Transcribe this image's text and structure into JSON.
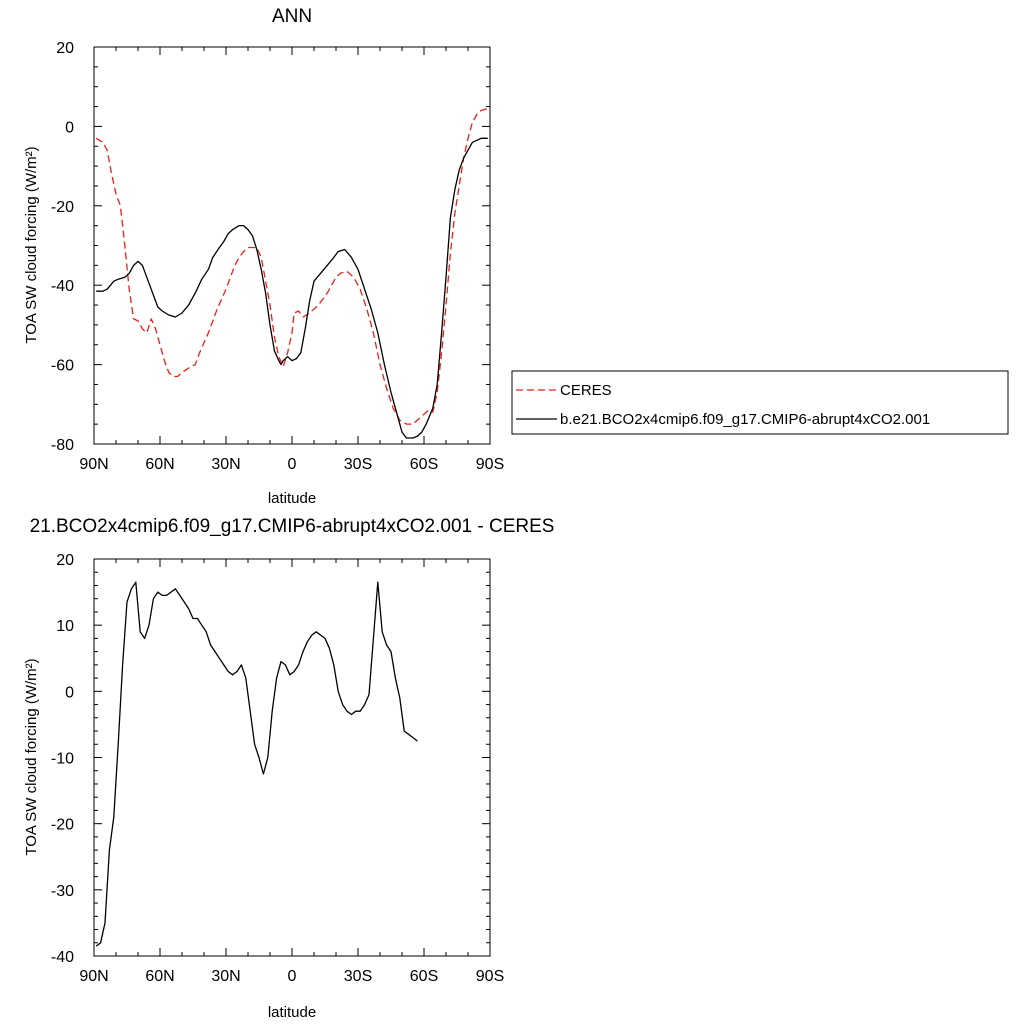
{
  "chart_data": [
    {
      "type": "line",
      "title": "ANN",
      "xlabel": "latitude",
      "ylabel": "TOA SW cloud forcing (W/m²)",
      "xlim": [
        90,
        -90
      ],
      "ylim": [
        -80,
        20
      ],
      "xticks": [
        90,
        60,
        30,
        0,
        -30,
        -60,
        -90
      ],
      "xtick_labels": [
        "90N",
        "60N",
        "30N",
        "0",
        "30S",
        "60S",
        "90S"
      ],
      "yticks": [
        -80,
        -60,
        -40,
        -20,
        0,
        20
      ],
      "ytick_labels": [
        "-80",
        "-60",
        "-40",
        "-20",
        "0",
        "20"
      ],
      "legend": "right",
      "series": [
        {
          "name": "CERES",
          "color": "#e8201c",
          "dash": "dashed",
          "points": [
            [
              89,
              -3
            ],
            [
              86,
              -4
            ],
            [
              84,
              -6
            ],
            [
              82,
              -12
            ],
            [
              80,
              -17
            ],
            [
              78,
              -20
            ],
            [
              76,
              -30
            ],
            [
              74,
              -41
            ],
            [
              72,
              -48.5
            ],
            [
              70,
              -49
            ],
            [
              68,
              -51
            ],
            [
              66,
              -52
            ],
            [
              64,
              -48.5
            ],
            [
              62,
              -51
            ],
            [
              60,
              -55
            ],
            [
              58,
              -59
            ],
            [
              56,
              -62
            ],
            [
              54,
              -63
            ],
            [
              52,
              -63
            ],
            [
              50,
              -62
            ],
            [
              46,
              -60.5
            ],
            [
              44,
              -60
            ],
            [
              42,
              -57
            ],
            [
              38,
              -52
            ],
            [
              34,
              -46
            ],
            [
              30,
              -41
            ],
            [
              28,
              -38
            ],
            [
              26,
              -35
            ],
            [
              24,
              -33
            ],
            [
              22,
              -31.5
            ],
            [
              20,
              -30.5
            ],
            [
              16,
              -30.5
            ],
            [
              14,
              -33
            ],
            [
              12,
              -39
            ],
            [
              10,
              -45
            ],
            [
              8,
              -53
            ],
            [
              6,
              -58
            ],
            [
              4,
              -60.5
            ],
            [
              2,
              -57
            ],
            [
              0,
              -52
            ],
            [
              -1,
              -47
            ],
            [
              -3,
              -46.5
            ],
            [
              -5,
              -48
            ],
            [
              -8,
              -47
            ],
            [
              -12,
              -45
            ],
            [
              -16,
              -42
            ],
            [
              -20,
              -38
            ],
            [
              -22,
              -37
            ],
            [
              -25,
              -36.5
            ],
            [
              -28,
              -38
            ],
            [
              -31,
              -41
            ],
            [
              -34,
              -46
            ],
            [
              -37,
              -52
            ],
            [
              -40,
              -60
            ],
            [
              -43,
              -66
            ],
            [
              -46,
              -71
            ],
            [
              -49,
              -74
            ],
            [
              -52,
              -75
            ],
            [
              -55,
              -75
            ],
            [
              -58,
              -73.5
            ],
            [
              -60,
              -72.5
            ],
            [
              -62,
              -71.5
            ],
            [
              -64,
              -72
            ],
            [
              -66,
              -67
            ],
            [
              -68,
              -57
            ],
            [
              -70,
              -45
            ],
            [
              -72,
              -32
            ],
            [
              -74,
              -22
            ],
            [
              -76,
              -15
            ],
            [
              -78,
              -8
            ],
            [
              -80,
              -3
            ],
            [
              -82,
              1
            ],
            [
              -84,
              3
            ],
            [
              -86,
              4
            ],
            [
              -89,
              4.5
            ]
          ]
        },
        {
          "name": "b.e21.BCO2x4cmip6.f09_g17.CMIP6-abrupt4xCO2.001",
          "color": "#000000",
          "dash": "solid",
          "points": [
            [
              89,
              -41.5
            ],
            [
              86,
              -41.5
            ],
            [
              84,
              -41
            ],
            [
              81,
              -39
            ],
            [
              79,
              -38.5
            ],
            [
              76,
              -38
            ],
            [
              74,
              -37
            ],
            [
              72,
              -35
            ],
            [
              70,
              -34
            ],
            [
              68,
              -35
            ],
            [
              66,
              -38
            ],
            [
              64,
              -41
            ],
            [
              61,
              -45.5
            ],
            [
              59,
              -46.5
            ],
            [
              56,
              -47.5
            ],
            [
              53,
              -48
            ],
            [
              50,
              -47
            ],
            [
              47,
              -45
            ],
            [
              44,
              -42
            ],
            [
              41,
              -38.5
            ],
            [
              38,
              -36
            ],
            [
              36,
              -33
            ],
            [
              33,
              -30.5
            ],
            [
              31,
              -29
            ],
            [
              29,
              -27
            ],
            [
              27,
              -26
            ],
            [
              24,
              -25
            ],
            [
              22,
              -25
            ],
            [
              20,
              -26
            ],
            [
              18,
              -27.5
            ],
            [
              16,
              -31
            ],
            [
              14,
              -36
            ],
            [
              12,
              -42
            ],
            [
              10,
              -50
            ],
            [
              8,
              -56.5
            ],
            [
              6,
              -59
            ],
            [
              5,
              -60
            ],
            [
              4,
              -59
            ],
            [
              2,
              -58
            ],
            [
              0,
              -59
            ],
            [
              -2,
              -58.5
            ],
            [
              -4,
              -57
            ],
            [
              -6,
              -51
            ],
            [
              -8,
              -44
            ],
            [
              -10,
              -39
            ],
            [
              -13,
              -37
            ],
            [
              -16,
              -35
            ],
            [
              -19,
              -33
            ],
            [
              -21,
              -31.5
            ],
            [
              -24,
              -31
            ],
            [
              -27,
              -33
            ],
            [
              -30,
              -36
            ],
            [
              -33,
              -41
            ],
            [
              -36,
              -46
            ],
            [
              -39,
              -52
            ],
            [
              -42,
              -60
            ],
            [
              -45,
              -67
            ],
            [
              -48,
              -73
            ],
            [
              -50,
              -77
            ],
            [
              -52,
              -78.5
            ],
            [
              -55,
              -78.5
            ],
            [
              -57,
              -78
            ],
            [
              -59,
              -77
            ],
            [
              -61,
              -75
            ],
            [
              -64,
              -71
            ],
            [
              -66,
              -65
            ],
            [
              -68,
              -52
            ],
            [
              -70,
              -38
            ],
            [
              -72,
              -23
            ],
            [
              -74,
              -16
            ],
            [
              -76,
              -11
            ],
            [
              -78,
              -8
            ],
            [
              -80,
              -6
            ],
            [
              -82,
              -4
            ],
            [
              -84,
              -3.5
            ],
            [
              -86,
              -3
            ],
            [
              -89,
              -3
            ]
          ]
        }
      ]
    },
    {
      "type": "line",
      "title": "21.BCO2x4cmip6.f09_g17.CMIP6-abrupt4xCO2.001 - CERES",
      "xlabel": "latitude",
      "ylabel": "TOA SW cloud forcing (W/m²)",
      "xlim": [
        90,
        -90
      ],
      "ylim": [
        -40,
        20
      ],
      "xticks": [
        90,
        60,
        30,
        0,
        -30,
        -60,
        -90
      ],
      "xtick_labels": [
        "90N",
        "60N",
        "30N",
        "0",
        "30S",
        "60S",
        "90S"
      ],
      "yticks": [
        -40,
        -30,
        -20,
        -10,
        0,
        10,
        20
      ],
      "ytick_labels": [
        "-40",
        "-30",
        "-20",
        "-10",
        "0",
        "10",
        "20"
      ],
      "series": [
        {
          "color": "#000000",
          "dash": "solid",
          "points": [
            [
              89,
              -38.5
            ],
            [
              87,
              -38
            ],
            [
              85,
              -35
            ],
            [
              83,
              -24
            ],
            [
              81,
              -19
            ],
            [
              79,
              -8
            ],
            [
              77,
              4
            ],
            [
              75,
              13.5
            ],
            [
              73,
              15.5
            ],
            [
              71,
              16.5
            ],
            [
              69,
              9
            ],
            [
              67,
              8
            ],
            [
              65,
              10
            ],
            [
              63,
              14
            ],
            [
              61,
              15
            ],
            [
              59,
              14.5
            ],
            [
              57,
              14.5
            ],
            [
              55,
              15
            ],
            [
              53,
              15.5
            ],
            [
              51,
              14.5
            ],
            [
              49,
              13.5
            ],
            [
              47,
              12.5
            ],
            [
              45,
              11
            ],
            [
              43,
              11
            ],
            [
              41,
              10
            ],
            [
              39,
              9
            ],
            [
              37,
              7
            ],
            [
              35,
              6
            ],
            [
              33,
              5
            ],
            [
              31,
              4
            ],
            [
              29,
              3
            ],
            [
              27,
              2.5
            ],
            [
              25,
              3
            ],
            [
              23,
              4
            ],
            [
              21,
              2
            ],
            [
              19,
              -3
            ],
            [
              17,
              -8
            ],
            [
              15,
              -10
            ],
            [
              13,
              -12.5
            ],
            [
              11,
              -10
            ],
            [
              9,
              -3
            ],
            [
              7,
              2
            ],
            [
              5,
              4.5
            ],
            [
              3,
              4
            ],
            [
              1,
              2.5
            ],
            [
              -1,
              3
            ],
            [
              -3,
              4
            ],
            [
              -5,
              6
            ],
            [
              -7,
              7.5
            ],
            [
              -9,
              8.5
            ],
            [
              -11,
              9
            ],
            [
              -13,
              8.5
            ],
            [
              -15,
              8
            ],
            [
              -17,
              6.5
            ],
            [
              -19,
              4
            ],
            [
              -21,
              0
            ],
            [
              -23,
              -2
            ],
            [
              -25,
              -3
            ],
            [
              -27,
              -3.5
            ],
            [
              -29,
              -3
            ],
            [
              -31,
              -3
            ],
            [
              -33,
              -2
            ],
            [
              -35,
              -0.5
            ],
            [
              -37,
              8
            ],
            [
              -39,
              16.5
            ],
            [
              -41,
              9
            ],
            [
              -43,
              7
            ],
            [
              -45,
              6
            ],
            [
              -47,
              2
            ],
            [
              -49,
              -1
            ],
            [
              -51,
              -6
            ],
            [
              -53,
              -6.5
            ],
            [
              -55,
              -7
            ],
            [
              -57,
              -7.5
            ]
          ]
        }
      ]
    }
  ]
}
